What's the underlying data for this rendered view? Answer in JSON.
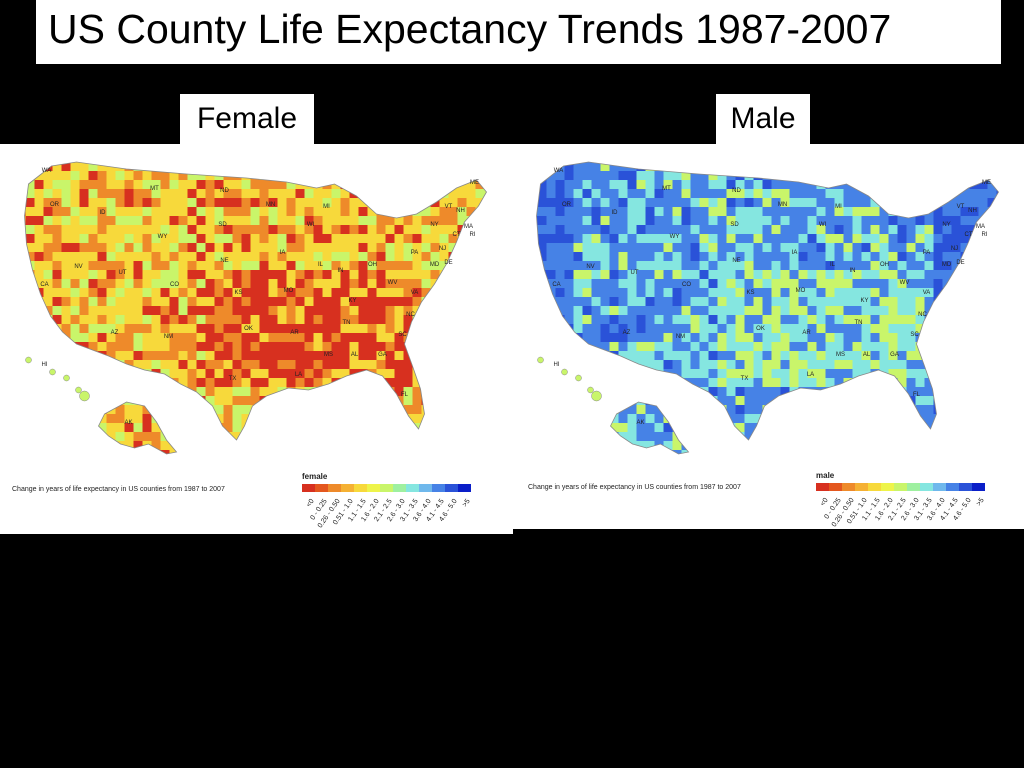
{
  "title": "US County Life Expectancy Trends 1987-2007",
  "caption": "Change in years of life expectancy in US counties from 1987 to 2007",
  "legend_categories": [
    "<0",
    "0 - 0.25",
    "0.26 - 0.50",
    "0.51 - 1.0",
    "1.1 - 1.5",
    "1.6 - 2.0",
    "2.1 - 2.5",
    "2.6 - 3.0",
    "3.1 - 3.5",
    "3.6 - 4.0",
    "4.1 - 4.5",
    "4.6 - 5.0",
    ">5"
  ],
  "legend_colors": [
    "#d7301f",
    "#e4571e",
    "#ee8a2a",
    "#f5b133",
    "#f7d93b",
    "#eef44a",
    "#c9f56a",
    "#9ef0a0",
    "#85e6e0",
    "#6fb8ec",
    "#4682e6",
    "#2a52d8",
    "#0a1ec8"
  ],
  "panels": [
    {
      "id": "female",
      "label": "Female",
      "legend_title": "female",
      "dominant_colors": [
        "#d7301f",
        "#ee8a2a",
        "#f7d93b",
        "#c9f56a"
      ],
      "state_labels": [
        "WA",
        "OR",
        "MT",
        "ID",
        "ND",
        "SD",
        "MN",
        "WY",
        "NV",
        "CA",
        "UT",
        "CO",
        "NE",
        "IA",
        "WI",
        "MI",
        "KS",
        "MO",
        "IL",
        "IN",
        "OH",
        "PA",
        "NY",
        "ME",
        "VT",
        "NH",
        "MA",
        "CT",
        "RI",
        "NJ",
        "MD",
        "DE",
        "WV",
        "VA",
        "KY",
        "TN",
        "NC",
        "SC",
        "GA",
        "AL",
        "MS",
        "AR",
        "LA",
        "OK",
        "TX",
        "NM",
        "AZ",
        "FL",
        "AK",
        "HI"
      ]
    },
    {
      "id": "male",
      "label": "Male",
      "legend_title": "male",
      "dominant_colors": [
        "#4682e6",
        "#85e6e0",
        "#c9f56a",
        "#2a52d8"
      ],
      "state_labels": [
        "WA",
        "OR",
        "MT",
        "ID",
        "ND",
        "SD",
        "MN",
        "WY",
        "NV",
        "CA",
        "UT",
        "CO",
        "NE",
        "IA",
        "WI",
        "MI",
        "KS",
        "MO",
        "IL",
        "IN",
        "OH",
        "PA",
        "NY",
        "ME",
        "VT",
        "NH",
        "MA",
        "CT",
        "RI",
        "NJ",
        "MD",
        "DE",
        "WV",
        "VA",
        "KY",
        "TN",
        "NC",
        "SC",
        "GA",
        "AL",
        "MS",
        "AR",
        "LA",
        "OK",
        "TX",
        "NM",
        "AZ",
        "FL",
        "AK",
        "HI"
      ]
    }
  ]
}
